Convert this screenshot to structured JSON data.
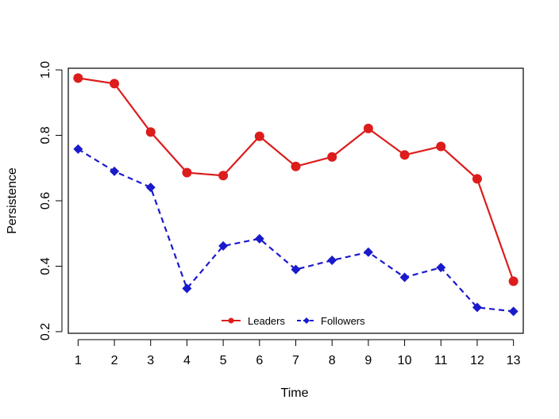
{
  "chart_data": {
    "type": "line",
    "title": "",
    "xlabel": "Time",
    "ylabel": "Persistence",
    "x": [
      1,
      2,
      3,
      4,
      5,
      6,
      7,
      8,
      9,
      10,
      11,
      12,
      13
    ],
    "x_tick_labels": [
      "1",
      "2",
      "3",
      "4",
      "5",
      "6",
      "7",
      "8",
      "9",
      "10",
      "11",
      "12",
      "13"
    ],
    "xlim": [
      0.73,
      13.27
    ],
    "ylim": [
      0.195,
      1.005
    ],
    "y_ticks": [
      0.2,
      0.4,
      0.6,
      0.8,
      1.0
    ],
    "y_tick_labels": [
      "0.2",
      "0.4",
      "0.6",
      "0.8",
      "1.0"
    ],
    "grid": false,
    "legend_position": "bottom-center",
    "series": [
      {
        "name": "Leaders",
        "color": "#dd1c1c",
        "line_style": "solid",
        "marker": "circle",
        "values": [
          0.975,
          0.958,
          0.81,
          0.686,
          0.677,
          0.797,
          0.705,
          0.734,
          0.821,
          0.74,
          0.766,
          0.667,
          0.354
        ]
      },
      {
        "name": "Followers",
        "color": "#1a1acc",
        "line_style": "dashed",
        "marker": "diamond",
        "values": [
          0.758,
          0.69,
          0.641,
          0.332,
          0.462,
          0.484,
          0.39,
          0.418,
          0.443,
          0.366,
          0.396,
          0.274,
          0.262
        ]
      }
    ],
    "legend": [
      {
        "label": "Leaders"
      },
      {
        "label": "Followers"
      }
    ]
  }
}
